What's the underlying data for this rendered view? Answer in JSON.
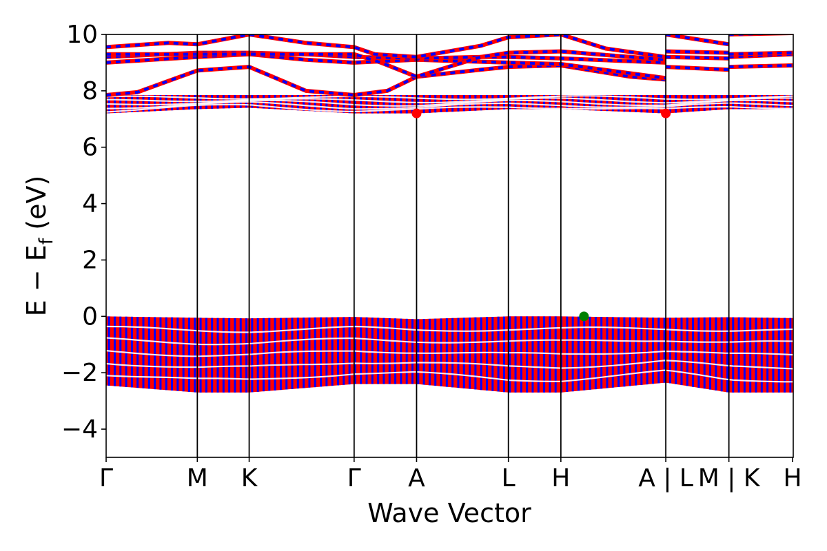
{
  "chart_data": {
    "type": "line",
    "xlabel": "Wave Vector",
    "ylabel_main": "E − E",
    "ylabel_sub": "f",
    "ylabel_tail": " (eV)",
    "ylim": [
      -5,
      10
    ],
    "yticks": [
      -4,
      -2,
      0,
      2,
      4,
      6,
      8,
      10
    ],
    "ytick_labels": [
      "−4",
      "−2",
      "0",
      "2",
      "4",
      "6",
      "8",
      "10"
    ],
    "xlim": [
      0,
      11.0
    ],
    "kpoints": [
      {
        "label": "Γ",
        "x": 0.0
      },
      {
        "label": "M",
        "x": 1.46
      },
      {
        "label": "K",
        "x": 2.29
      },
      {
        "label": "Γ",
        "x": 3.97
      },
      {
        "label": "A",
        "x": 4.97
      },
      {
        "label": "L",
        "x": 6.44
      },
      {
        "label": "H",
        "x": 7.28
      },
      {
        "label": "A | L",
        "x": 8.96
      },
      {
        "label": "M | K",
        "x": 9.97
      },
      {
        "label": "H",
        "x": 10.99
      }
    ],
    "colors": {
      "spin_up": "#0000ff",
      "spin_down": "#ff0000",
      "vbm": "#008000",
      "cbm": "#ff0000",
      "axis": "#000000"
    },
    "valence_band": {
      "top": [
        0.0,
        -0.05,
        -0.07,
        -0.02,
        -0.1,
        0.0,
        0.0,
        -0.05,
        -0.03,
        -0.06,
        0.0
      ],
      "bottom": [
        -2.45,
        -2.7,
        -2.7,
        -2.4,
        -2.4,
        -2.7,
        -2.7,
        -2.35,
        -2.7,
        -2.7,
        -2.7
      ]
    },
    "conduction_block": {
      "bottom": [
        7.2,
        7.35,
        7.4,
        7.2,
        7.2,
        7.35,
        7.35,
        7.2,
        7.35,
        7.35,
        7.35
      ],
      "top": [
        7.85,
        7.85,
        7.85,
        7.85,
        7.85,
        7.85,
        7.85,
        7.85,
        7.85,
        7.85,
        7.85
      ]
    },
    "upper_bands": [
      {
        "segments": [
          [
            [
              0,
              7.85
            ],
            [
              0.5,
              7.95
            ],
            [
              1.46,
              8.72
            ],
            [
              2.29,
              8.85
            ],
            [
              3.2,
              8.0
            ],
            [
              3.97,
              7.85
            ],
            [
              4.5,
              8.0
            ],
            [
              4.97,
              8.5
            ],
            [
              6.0,
              8.75
            ],
            [
              6.44,
              8.85
            ],
            [
              7.28,
              8.9
            ],
            [
              8.4,
              8.5
            ],
            [
              8.96,
              8.4
            ]
          ],
          [
            [
              8.96,
              8.4
            ]
          ]
        ]
      },
      {
        "segments": [
          [
            [
              0,
              9.0
            ],
            [
              1.46,
              9.2
            ],
            [
              2.29,
              9.3
            ],
            [
              3.2,
              9.1
            ],
            [
              3.97,
              9.0
            ],
            [
              4.97,
              9.1
            ],
            [
              6.44,
              9.0
            ],
            [
              7.28,
              8.95
            ],
            [
              8.96,
              8.45
            ]
          ],
          [
            [
              8.96,
              8.85
            ],
            [
              9.97,
              8.75
            ]
          ],
          [
            [
              9.97,
              8.85
            ],
            [
              10.99,
              8.9
            ]
          ]
        ]
      },
      {
        "segments": [
          [
            [
              0,
              9.2
            ],
            [
              1.46,
              9.35
            ],
            [
              2.29,
              9.35
            ],
            [
              3.2,
              9.3
            ],
            [
              3.97,
              9.2
            ],
            [
              4.97,
              9.15
            ],
            [
              6.0,
              9.2
            ],
            [
              6.44,
              9.2
            ],
            [
              7.28,
              9.15
            ],
            [
              8.96,
              9.0
            ]
          ],
          [
            [
              8.96,
              9.2
            ],
            [
              9.97,
              9.15
            ]
          ],
          [
            [
              9.97,
              9.2
            ],
            [
              10.99,
              9.3
            ]
          ]
        ]
      },
      {
        "segments": [
          [
            [
              0,
              9.3
            ],
            [
              1.46,
              9.3
            ],
            [
              2.29,
              9.3
            ],
            [
              3.97,
              9.3
            ],
            [
              4.4,
              9.0
            ],
            [
              4.97,
              8.5
            ],
            [
              6.0,
              9.2
            ],
            [
              6.44,
              9.35
            ],
            [
              7.28,
              9.4
            ],
            [
              8.96,
              9.1
            ]
          ],
          [
            [
              8.96,
              9.4
            ],
            [
              9.97,
              9.35
            ]
          ],
          [
            [
              9.97,
              9.3
            ],
            [
              10.99,
              9.35
            ]
          ]
        ]
      },
      {
        "segments": [
          [
            [
              0,
              9.55
            ],
            [
              1.0,
              9.7
            ],
            [
              1.46,
              9.65
            ],
            [
              2.29,
              10.0
            ],
            [
              3.2,
              9.7
            ],
            [
              3.97,
              9.55
            ],
            [
              4.3,
              9.3
            ],
            [
              4.97,
              9.2
            ],
            [
              6.0,
              9.6
            ],
            [
              6.44,
              9.9
            ],
            [
              7.28,
              10.0
            ],
            [
              8.0,
              9.5
            ],
            [
              8.96,
              9.2
            ]
          ],
          [
            [
              8.96,
              10.0
            ],
            [
              9.97,
              9.65
            ]
          ],
          [
            [
              9.97,
              10.0
            ],
            [
              10.99,
              10.05
            ]
          ]
        ]
      }
    ],
    "cbm_points": [
      {
        "x": 4.97,
        "y": 7.2
      },
      {
        "x": 8.96,
        "y": 7.2
      }
    ],
    "vbm_points": [
      {
        "x": 7.65,
        "y": 0.0
      }
    ]
  }
}
